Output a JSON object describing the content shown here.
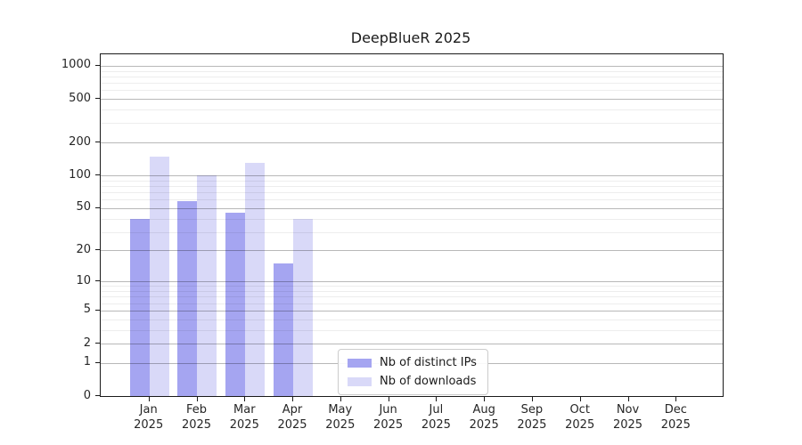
{
  "chart_data": {
    "type": "bar",
    "title": "DeepBlueR 2025",
    "scale": "log10(1+x)",
    "categories": [
      "Jan",
      "Feb",
      "Mar",
      "Apr",
      "May",
      "Jun",
      "Jul",
      "Aug",
      "Sep",
      "Oct",
      "Nov",
      "Dec"
    ],
    "tick_year": "2025",
    "series": [
      {
        "name": "Nb of distinct IPs",
        "color": "#a5a5f1",
        "values": [
          40,
          58,
          45,
          15,
          0,
          0,
          0,
          0,
          0,
          0,
          0,
          0
        ]
      },
      {
        "name": "Nb of downloads",
        "color": "#d9d9f8",
        "values": [
          150,
          100,
          130,
          40,
          0,
          0,
          0,
          0,
          0,
          0,
          0,
          0
        ]
      }
    ],
    "y_ticks": [
      0,
      1,
      2,
      5,
      10,
      20,
      50,
      100,
      200,
      500,
      1000
    ],
    "y_minor_ticks": [
      3,
      4,
      6,
      7,
      8,
      9,
      30,
      40,
      60,
      70,
      80,
      90,
      300,
      400,
      600,
      700,
      800,
      900
    ],
    "ylim": [
      0,
      1280
    ],
    "grid": "on",
    "legend_position": "bottom-center-inside",
    "xlabel": "",
    "ylabel": ""
  }
}
